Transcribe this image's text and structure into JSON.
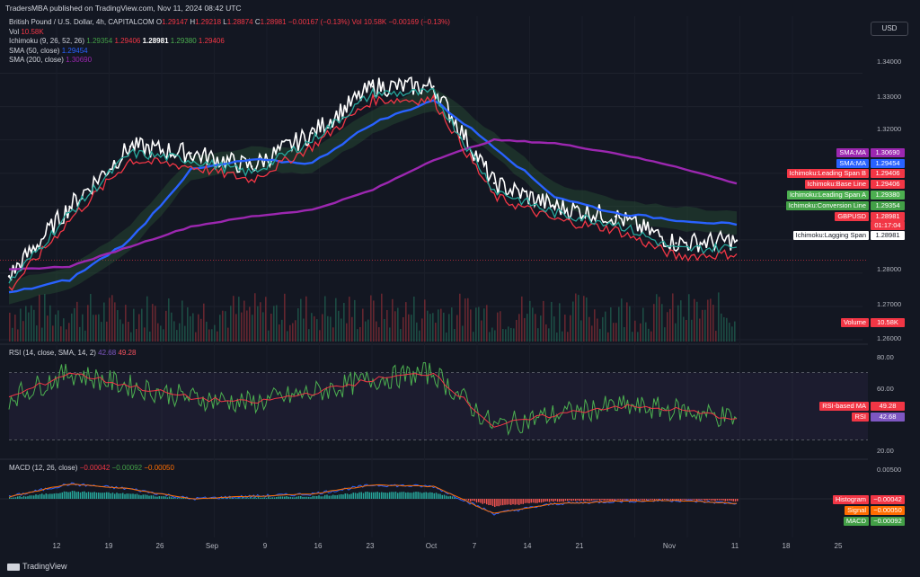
{
  "header": {
    "publisher": "TradersMBA published on TradingView.com, Nov 11, 2024 08:42 UTC"
  },
  "legend": {
    "symbol": "British Pound / U.S. Dollar, 4h, CAPITALCOM",
    "o_label": "O",
    "o_value": "1.29147",
    "h_label": "H",
    "h_value": "1.29218",
    "l_label": "L",
    "l_value": "1.28874",
    "c_label": "C",
    "c_value": "1.28981",
    "change": "−0.00167 (−0.13%)",
    "vol_inline": "Vol 10.58K −0.00169 (−0.13%)",
    "vol_label": "Vol",
    "vol_value": "10.58K",
    "ichimoku_label": "Ichimoku (9, 26, 52, 26)",
    "ichimoku_values": [
      "1.29354",
      "1.29406",
      "1.28981",
      "1.29380",
      "1.29406"
    ],
    "sma50_label": "SMA (50, close)",
    "sma50_value": "1.29454",
    "sma200_label": "SMA (200, close)",
    "sma200_value": "1.30690"
  },
  "currency_button": "USD",
  "price_axis": [
    "1.34000",
    "1.33000",
    "1.32000",
    "1.28000",
    "1.27000",
    "1.26000"
  ],
  "tags": [
    {
      "label": "SMA:MA",
      "value": "1.30690",
      "color": "#9c27b0"
    },
    {
      "label": "SMA:MA",
      "value": "1.29454",
      "color": "#2962ff"
    },
    {
      "label": "Ichimoku:Leading Span B",
      "value": "1.29406",
      "color": "#f23645"
    },
    {
      "label": "Ichimoku:Base Line",
      "value": "1.29406",
      "color": "#f23645"
    },
    {
      "label": "Ichimoku:Leading Span A",
      "value": "1.29380",
      "color": "#4caf50"
    },
    {
      "label": "Ichimoku:Conversion Line",
      "value": "1.29354",
      "color": "#43a047"
    },
    {
      "label": "GBPUSD",
      "value": "1.28981",
      "color": "#f23645"
    },
    {
      "label": "Ichimoku:Lagging Span",
      "value": "1.28981",
      "color": "#ffffff"
    },
    {
      "label": "Volume",
      "value": "10.58K",
      "color": "#f23645"
    }
  ],
  "countdown": "01:17:04",
  "rsi": {
    "label": "RSI (14, close, SMA, 14, 2)",
    "rsi_value": "42.68",
    "ma_value": "49.28",
    "axis": [
      "80.00",
      "60.00",
      "20.00"
    ],
    "tag_ma_label": "RSI-based MA",
    "tag_ma_value": "49.28",
    "tag_rsi_label": "RSI",
    "tag_rsi_value": "42.68"
  },
  "macd": {
    "label": "MACD (12, 26, close)",
    "values": [
      "−0.00042",
      "−0.00092",
      "−0.00050"
    ],
    "axis_top": "0.00500",
    "tags": [
      {
        "label": "Histogram",
        "value": "−0.00042",
        "color": "#f23645"
      },
      {
        "label": "Signal",
        "value": "−0.00050",
        "color": "#ff6d00"
      },
      {
        "label": "MACD",
        "value": "−0.00092",
        "color": "#43a047"
      }
    ]
  },
  "x_axis": [
    "12",
    "19",
    "26",
    "Sep",
    "9",
    "16",
    "23",
    "Oct",
    "7",
    "14",
    "21",
    "Nov",
    "11",
    "18",
    "25"
  ],
  "footer": "TradingView",
  "chart_data": {
    "type": "line",
    "title": "British Pound / U.S. Dollar, 4h, CAPITALCOM",
    "x": [
      "12",
      "19",
      "26",
      "Sep",
      "9",
      "16",
      "23",
      "Oct",
      "7",
      "14",
      "21",
      "Nov",
      "11"
    ],
    "series": [
      {
        "name": "GBPUSD close",
        "values": [
          1.279,
          1.3,
          1.318,
          1.316,
          1.312,
          1.322,
          1.336,
          1.336,
          1.307,
          1.3,
          1.297,
          1.289,
          1.2898
        ]
      },
      {
        "name": "SMA (50, close)",
        "values": [
          1.274,
          1.278,
          1.29,
          1.311,
          1.314,
          1.313,
          1.325,
          1.332,
          1.318,
          1.303,
          1.298,
          1.296,
          1.2945
        ]
      },
      {
        "name": "SMA (200, close)",
        "values": [
          1.281,
          1.282,
          1.288,
          1.294,
          1.297,
          1.299,
          1.305,
          1.314,
          1.32,
          1.319,
          1.316,
          1.312,
          1.3069
        ]
      }
    ],
    "ylim": [
      1.26,
      1.345
    ],
    "legend_position": "top-left",
    "rsi": {
      "values": [
        55,
        70,
        62,
        55,
        52,
        58,
        66,
        70,
        38,
        45,
        50,
        48,
        42.68
      ],
      "ylim": [
        20,
        80
      ]
    },
    "macd": {
      "values": [
        0.0004,
        0.003,
        0.002,
        0.0,
        0.0005,
        0.001,
        0.0028,
        0.0025,
        -0.003,
        -0.001,
        -0.0005,
        -0.0003,
        -0.00092
      ]
    }
  }
}
